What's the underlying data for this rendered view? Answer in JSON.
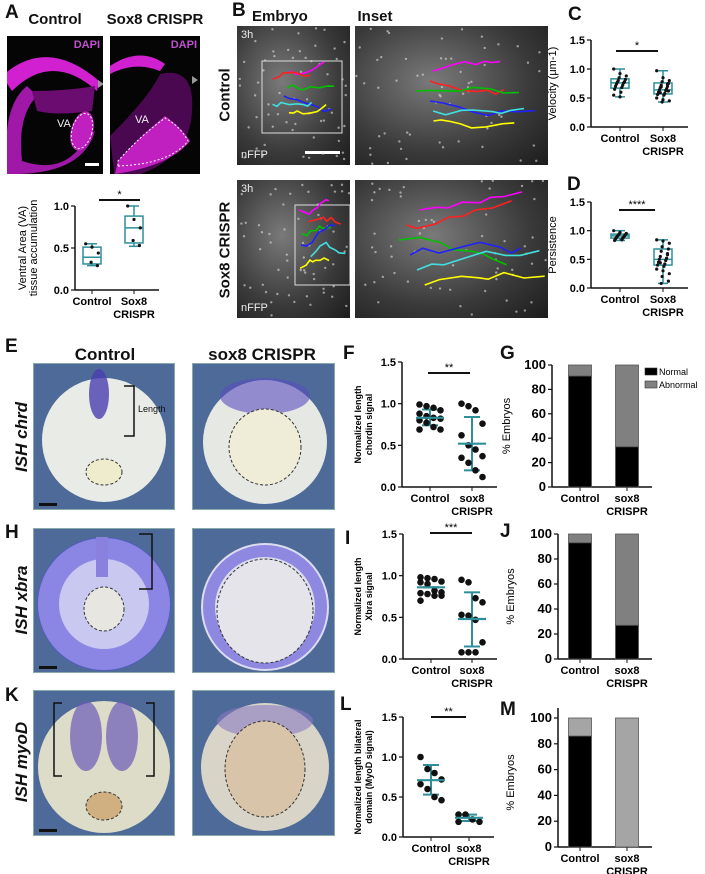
{
  "panel_letters": {
    "A": "A",
    "B": "B",
    "C": "C",
    "D": "D",
    "E": "E",
    "F": "F",
    "G": "G",
    "H": "H",
    "I": "I",
    "J": "J",
    "K": "K",
    "L": "L",
    "M": "M"
  },
  "panel_a": {
    "col_control": "Control",
    "col_sox8": "Sox8 CRISPR",
    "stain": "DAPI",
    "region": "VA"
  },
  "panel_b": {
    "col_embryo": "Embryo",
    "col_inset": "Inset",
    "row_control": "Control",
    "row_sox8": "Sox8 CRISPR",
    "time": "3h",
    "marker": "nFFP",
    "track_colors": [
      "#ff00ff",
      "#ff2020",
      "#00c000",
      "#2020ff",
      "#40e0e0",
      "#ffff00",
      "#ffffff"
    ]
  },
  "panel_e": {
    "col_control": "Control",
    "col_sox8": "sox8 CRISPR",
    "row_chrd": "ISH chrd",
    "row_xbra": "ISH xbra",
    "row_myod": "ISH myoD",
    "length_label": "Length"
  },
  "colors": {
    "box": "#2e8f9a",
    "normal": "#000000",
    "abnormal": "#808080",
    "abnormal_m": "#a5a5a5",
    "dapi": "#e020e0"
  },
  "chart_data": [
    {
      "id": "A",
      "type": "box",
      "ylabel": [
        "Ventral Area (VA)",
        "tissue accumulation"
      ],
      "categories": [
        [
          "Control"
        ],
        [
          "Sox8",
          "CRISPR"
        ]
      ],
      "ylim": [
        0,
        1.0
      ],
      "ticks": [
        "0.0",
        "0.5",
        "1.0"
      ],
      "signif": "*",
      "boxes": [
        {
          "min": 0.29,
          "q1": 0.31,
          "median": 0.39,
          "q3": 0.51,
          "max": 0.55,
          "points": [
            0.55,
            0.51,
            0.44,
            0.33,
            0.29
          ]
        },
        {
          "min": 0.52,
          "q1": 0.56,
          "median": 0.74,
          "q3": 0.88,
          "max": 1.0,
          "points": [
            1.0,
            0.84,
            0.74,
            0.59,
            0.53
          ]
        }
      ]
    },
    {
      "id": "C",
      "type": "box",
      "ylabel": [
        "Velocity (μm-1)"
      ],
      "categories": [
        [
          "Control"
        ],
        [
          "Sox8",
          "CRISPR"
        ]
      ],
      "ylim": [
        0,
        1.5
      ],
      "ticks": [
        "0.0",
        "0.5",
        "1.0",
        "1.5"
      ],
      "signif": "*",
      "boxes": [
        {
          "min": 0.52,
          "q1": 0.67,
          "median": 0.76,
          "q3": 0.83,
          "max": 1.0,
          "points": [
            1.0,
            0.92,
            0.88,
            0.85,
            0.82,
            0.8,
            0.78,
            0.77,
            0.76,
            0.74,
            0.72,
            0.7,
            0.68,
            0.65,
            0.6,
            0.55,
            0.52
          ]
        },
        {
          "min": 0.43,
          "q1": 0.57,
          "median": 0.64,
          "q3": 0.76,
          "max": 0.97,
          "points": [
            0.97,
            0.85,
            0.8,
            0.78,
            0.75,
            0.72,
            0.7,
            0.68,
            0.66,
            0.64,
            0.63,
            0.6,
            0.58,
            0.56,
            0.55,
            0.5,
            0.47,
            0.45,
            0.43,
            0.62,
            0.69,
            0.74,
            0.59
          ]
        }
      ]
    },
    {
      "id": "D",
      "type": "box",
      "ylabel": [
        "Persistence"
      ],
      "categories": [
        [
          "Control"
        ],
        [
          "Sox8",
          "CRISPR"
        ]
      ],
      "ylim": [
        0,
        1.5
      ],
      "ticks": [
        "0.0",
        "0.5",
        "1.0",
        "1.5"
      ],
      "signif": "****",
      "boxes": [
        {
          "min": 0.83,
          "q1": 0.87,
          "median": 0.91,
          "q3": 0.94,
          "max": 1.0,
          "points": [
            1.0,
            0.97,
            0.95,
            0.94,
            0.93,
            0.92,
            0.91,
            0.9,
            0.89,
            0.88,
            0.87,
            0.86,
            0.84,
            0.83
          ]
        },
        {
          "min": 0.08,
          "q1": 0.4,
          "median": 0.5,
          "q3": 0.68,
          "max": 0.84,
          "points": [
            0.84,
            0.82,
            0.78,
            0.72,
            0.68,
            0.64,
            0.6,
            0.55,
            0.52,
            0.5,
            0.48,
            0.45,
            0.42,
            0.4,
            0.38,
            0.33,
            0.3,
            0.25,
            0.2,
            0.12,
            0.08,
            0.58,
            0.44
          ]
        }
      ]
    },
    {
      "id": "F",
      "type": "dot",
      "ylabel": [
        "Normalized length",
        "chordin signal"
      ],
      "categories": [
        [
          "Control"
        ],
        [
          "sox8",
          "CRISPR"
        ]
      ],
      "ylim": [
        0,
        1.5
      ],
      "ticks": [
        "0.0",
        "0.5",
        "1.0",
        "1.5"
      ],
      "signif": "**",
      "groups": [
        {
          "mean": 0.83,
          "sd_low": 0.74,
          "sd_high": 0.93,
          "points": [
            0.99,
            0.97,
            0.95,
            0.92,
            0.88,
            0.85,
            0.83,
            0.82,
            0.8,
            0.77,
            0.72,
            0.69,
            0.69
          ]
        },
        {
          "mean": 0.52,
          "sd_low": 0.2,
          "sd_high": 0.84,
          "points": [
            1.0,
            0.97,
            0.92,
            0.76,
            0.62,
            0.5,
            0.45,
            0.37,
            0.35,
            0.29,
            0.2,
            0.12
          ]
        }
      ]
    },
    {
      "id": "G",
      "type": "stacked-bar",
      "ylabel": [
        "% Embryos"
      ],
      "categories": [
        [
          "Control"
        ],
        [
          "sox8",
          "CRISPR"
        ]
      ],
      "ylim": [
        0,
        100
      ],
      "ticks": [
        "0",
        "20",
        "40",
        "60",
        "80",
        "100"
      ],
      "legend": [
        "Normal",
        "Abnormal"
      ],
      "series": [
        {
          "name": "Normal",
          "values": [
            91,
            33
          ]
        },
        {
          "name": "Abnormal",
          "values": [
            9,
            67
          ]
        }
      ]
    },
    {
      "id": "I",
      "type": "dot",
      "ylabel": [
        "Normalized length",
        "Xbra signal"
      ],
      "categories": [
        [
          "Control"
        ],
        [
          "sox8",
          "CRISPR"
        ]
      ],
      "ylim": [
        0,
        1.5
      ],
      "ticks": [
        "0.0",
        "0.5",
        "1.0",
        "1.5"
      ],
      "signif": "***",
      "groups": [
        {
          "mean": 0.86,
          "sd_low": 0.86,
          "sd_high": 0.86,
          "points": [
            0.98,
            0.97,
            0.96,
            0.93,
            0.92,
            0.9,
            0.82,
            0.8,
            0.79,
            0.78,
            0.76,
            0.76,
            0.7
          ]
        },
        {
          "mean": 0.48,
          "sd_low": 0.15,
          "sd_high": 0.8,
          "points": [
            0.95,
            0.92,
            0.73,
            0.68,
            0.53,
            0.52,
            0.47,
            0.2,
            0.08,
            0.08,
            0.08
          ]
        }
      ]
    },
    {
      "id": "J",
      "type": "stacked-bar",
      "ylabel": [
        "% Embryos"
      ],
      "categories": [
        [
          "Control"
        ],
        [
          "sox8",
          "CRISPR"
        ]
      ],
      "ylim": [
        0,
        100
      ],
      "ticks": [
        "0",
        "20",
        "40",
        "60",
        "80",
        "100"
      ],
      "series": [
        {
          "name": "Normal",
          "values": [
            93,
            27
          ]
        },
        {
          "name": "Abnormal",
          "values": [
            7,
            73
          ]
        }
      ]
    },
    {
      "id": "L",
      "type": "dot",
      "ylabel": [
        "Normalized length bilateral",
        "domain (MyoD signal)"
      ],
      "categories": [
        [
          "Control"
        ],
        [
          "sox8",
          "CRISPR"
        ]
      ],
      "ylim": [
        0,
        1.5
      ],
      "ticks": [
        "0.0",
        "0.5",
        "1.0",
        "1.5"
      ],
      "signif": "**",
      "groups": [
        {
          "mean": 0.71,
          "sd_low": 0.53,
          "sd_high": 0.9,
          "points": [
            1.0,
            0.85,
            0.8,
            0.72,
            0.66,
            0.6,
            0.5,
            0.46
          ]
        },
        {
          "mean": 0.24,
          "sd_low": 0.2,
          "sd_high": 0.28,
          "points": [
            0.28,
            0.28,
            0.22,
            0.19,
            0.19
          ]
        }
      ]
    },
    {
      "id": "M",
      "type": "stacked-bar",
      "ylabel": [
        "% Embryos"
      ],
      "categories": [
        [
          "Control"
        ],
        [
          "sox8",
          "CRISPR"
        ]
      ],
      "ylim": [
        0,
        100
      ],
      "ticks": [
        "0",
        "20",
        "40",
        "60",
        "80",
        "100"
      ],
      "series": [
        {
          "name": "Normal",
          "values": [
            86,
            0
          ]
        },
        {
          "name": "Abnormal",
          "values": [
            14,
            100
          ]
        }
      ]
    }
  ]
}
